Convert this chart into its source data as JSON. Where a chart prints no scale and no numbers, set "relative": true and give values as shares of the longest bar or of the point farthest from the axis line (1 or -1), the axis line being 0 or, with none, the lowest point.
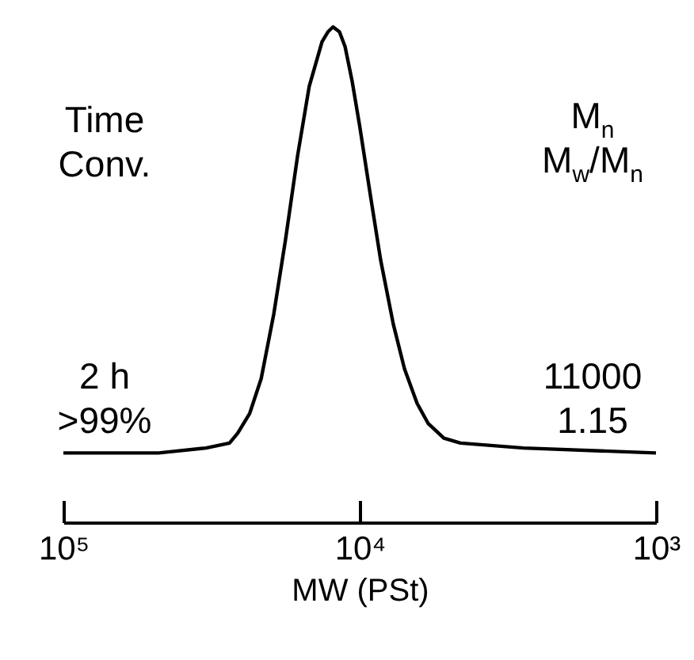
{
  "chart_data": {
    "type": "line",
    "relative": true,
    "xlabel": "MW (PSt)",
    "log": "x",
    "xlim": [
      100000,
      1000
    ],
    "xticks": [
      {
        "value": 100000,
        "label": "10⁵"
      },
      {
        "value": 10000,
        "label": "10⁴"
      },
      {
        "value": 1000,
        "label": "10³"
      }
    ],
    "x": [
      100000,
      47700,
      33000,
      27500,
      25800,
      23500,
      21500,
      19500,
      17800,
      16200,
      14800,
      13400,
      12800,
      12300,
      11700,
      11200,
      10600,
      10000,
      9200,
      8500,
      7700,
      7060,
      6400,
      5880,
      5200,
      4570,
      2800,
      1000
    ],
    "series": [
      {
        "color": "#000000",
        "values": [
          0.14,
          0.14,
          0.15,
          0.16,
          0.18,
          0.22,
          0.29,
          0.42,
          0.57,
          0.74,
          0.88,
          0.97,
          0.99,
          1,
          0.99,
          0.96,
          0.89,
          0.8,
          0.66,
          0.53,
          0.4,
          0.31,
          0.24,
          0.2,
          0.17,
          0.16,
          0.15,
          0.14
        ]
      }
    ],
    "marker": "none",
    "line_style": "solid",
    "grid": false,
    "annotations": [
      "Time",
      "Conv.",
      "2 h",
      ">99%",
      "M$_{n}$",
      "M$_{w}$/M$_{n}$",
      "11000",
      "1.15"
    ]
  }
}
